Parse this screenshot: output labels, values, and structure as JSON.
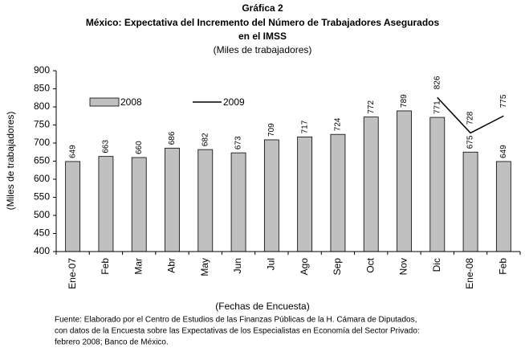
{
  "chart_data": {
    "type": "bar",
    "title": [
      "Gráfica 2",
      "México: Expectativa del Incremento del Número de Trabajadores Asegurados",
      "en el IMSS"
    ],
    "subtitle": "(Miles de trabajadores)",
    "y_label": "(Miles de trabajadores)",
    "x_label": "(Fechas de Encuesta)",
    "categories": [
      "Ene-07",
      "Feb",
      "Mar",
      "Abr",
      "May",
      "Jun",
      "Jul",
      "Ago",
      "Sep",
      "Oct",
      "Nov",
      "Dic",
      "Ene-08",
      "Feb"
    ],
    "series": [
      {
        "name": "2008",
        "color": "#c0c0c0",
        "values": [
          649,
          663,
          660,
          686,
          682,
          673,
          709,
          717,
          724,
          772,
          789,
          771,
          675,
          649
        ]
      },
      {
        "name": "2009",
        "color": "#000000",
        "type": "line",
        "values": [
          null,
          null,
          null,
          null,
          null,
          null,
          null,
          null,
          null,
          null,
          null,
          826,
          728,
          775
        ]
      }
    ],
    "ylim": [
      400,
      900
    ],
    "yticks": [
      400,
      450,
      500,
      550,
      600,
      650,
      700,
      750,
      800,
      850,
      900
    ],
    "source": [
      "Fuente: Elaborado por el Centro de Estudios de las Finanzas Públicas de la H. Cámara de Diputados,",
      "con datos de la Encuesta sobre las Expectativas de los Especialistas en Economía del Sector Privado:",
      "febrero 2008; Banco de México."
    ]
  }
}
